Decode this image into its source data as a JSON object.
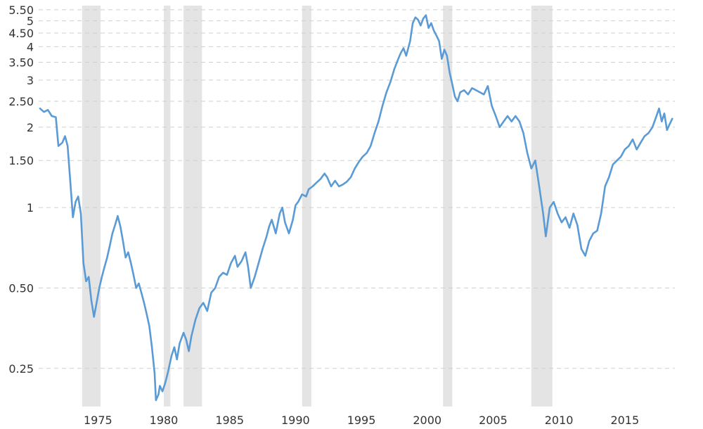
{
  "chart_data": {
    "type": "line",
    "title": "",
    "xlabel": "",
    "ylabel": "",
    "y_scale": "log",
    "xlim": [
      1970.5,
      2018.8
    ],
    "ylim": [
      0.18,
      5.7
    ],
    "grid": true,
    "legend": "none",
    "line_color": "#5b9bd5",
    "recession_color": "#e4e4e4",
    "x_ticks": [
      {
        "value": 1975,
        "label": "1975"
      },
      {
        "value": 1980,
        "label": "1980"
      },
      {
        "value": 1985,
        "label": "1985"
      },
      {
        "value": 1990,
        "label": "1990"
      },
      {
        "value": 1995,
        "label": "1995"
      },
      {
        "value": 2000,
        "label": "2000"
      },
      {
        "value": 2005,
        "label": "2005"
      },
      {
        "value": 2010,
        "label": "2010"
      },
      {
        "value": 2015,
        "label": "2015"
      }
    ],
    "y_ticks": [
      {
        "value": 0.25,
        "label": "0.25"
      },
      {
        "value": 0.5,
        "label": "0.50"
      },
      {
        "value": 1,
        "label": "1"
      },
      {
        "value": 1.5,
        "label": "1.50"
      },
      {
        "value": 2,
        "label": "2"
      },
      {
        "value": 2.5,
        "label": "2.50"
      },
      {
        "value": 3,
        "label": "3"
      },
      {
        "value": 3.5,
        "label": "3.50"
      },
      {
        "value": 4,
        "label": "4"
      },
      {
        "value": 4.5,
        "label": "4.50"
      },
      {
        "value": 5,
        "label": "5"
      },
      {
        "value": 5.5,
        "label": "5.50"
      }
    ],
    "recessions": [
      [
        1973.8,
        1975.2
      ],
      [
        1980.0,
        1980.5
      ],
      [
        1981.5,
        1982.9
      ],
      [
        1990.5,
        1991.2
      ],
      [
        2001.2,
        2001.9
      ],
      [
        2007.9,
        2009.5
      ]
    ],
    "series": [
      {
        "points": [
          [
            1970.6,
            2.35
          ],
          [
            1970.9,
            2.28
          ],
          [
            1971.2,
            2.32
          ],
          [
            1971.5,
            2.2
          ],
          [
            1971.8,
            2.18
          ],
          [
            1972.0,
            1.7
          ],
          [
            1972.3,
            1.75
          ],
          [
            1972.5,
            1.85
          ],
          [
            1972.7,
            1.7
          ],
          [
            1972.9,
            1.25
          ],
          [
            1973.1,
            0.92
          ],
          [
            1973.3,
            1.05
          ],
          [
            1973.5,
            1.1
          ],
          [
            1973.7,
            0.95
          ],
          [
            1973.9,
            0.62
          ],
          [
            1974.1,
            0.53
          ],
          [
            1974.3,
            0.55
          ],
          [
            1974.5,
            0.45
          ],
          [
            1974.7,
            0.39
          ],
          [
            1974.9,
            0.44
          ],
          [
            1975.1,
            0.5
          ],
          [
            1975.3,
            0.55
          ],
          [
            1975.5,
            0.6
          ],
          [
            1975.7,
            0.65
          ],
          [
            1975.9,
            0.72
          ],
          [
            1976.1,
            0.8
          ],
          [
            1976.3,
            0.86
          ],
          [
            1976.5,
            0.93
          ],
          [
            1976.7,
            0.85
          ],
          [
            1976.9,
            0.75
          ],
          [
            1977.1,
            0.65
          ],
          [
            1977.3,
            0.68
          ],
          [
            1977.5,
            0.62
          ],
          [
            1977.7,
            0.56
          ],
          [
            1977.9,
            0.5
          ],
          [
            1978.1,
            0.52
          ],
          [
            1978.3,
            0.48
          ],
          [
            1978.5,
            0.44
          ],
          [
            1978.7,
            0.4
          ],
          [
            1978.9,
            0.36
          ],
          [
            1979.1,
            0.3
          ],
          [
            1979.3,
            0.24
          ],
          [
            1979.4,
            0.19
          ],
          [
            1979.6,
            0.2
          ],
          [
            1979.7,
            0.215
          ],
          [
            1979.9,
            0.205
          ],
          [
            1980.1,
            0.22
          ],
          [
            1980.3,
            0.24
          ],
          [
            1980.6,
            0.28
          ],
          [
            1980.8,
            0.3
          ],
          [
            1981.0,
            0.27
          ],
          [
            1981.2,
            0.31
          ],
          [
            1981.5,
            0.34
          ],
          [
            1981.7,
            0.32
          ],
          [
            1981.9,
            0.29
          ],
          [
            1982.1,
            0.33
          ],
          [
            1982.4,
            0.38
          ],
          [
            1982.7,
            0.42
          ],
          [
            1983.0,
            0.44
          ],
          [
            1983.3,
            0.41
          ],
          [
            1983.6,
            0.48
          ],
          [
            1983.9,
            0.5
          ],
          [
            1984.2,
            0.55
          ],
          [
            1984.5,
            0.57
          ],
          [
            1984.8,
            0.56
          ],
          [
            1985.1,
            0.62
          ],
          [
            1985.4,
            0.66
          ],
          [
            1985.6,
            0.6
          ],
          [
            1985.9,
            0.63
          ],
          [
            1986.2,
            0.68
          ],
          [
            1986.4,
            0.6
          ],
          [
            1986.6,
            0.5
          ],
          [
            1986.9,
            0.55
          ],
          [
            1987.2,
            0.62
          ],
          [
            1987.5,
            0.7
          ],
          [
            1987.8,
            0.78
          ],
          [
            1988.0,
            0.85
          ],
          [
            1988.2,
            0.9
          ],
          [
            1988.5,
            0.8
          ],
          [
            1988.8,
            0.95
          ],
          [
            1989.0,
            1.0
          ],
          [
            1989.2,
            0.88
          ],
          [
            1989.5,
            0.8
          ],
          [
            1989.8,
            0.9
          ],
          [
            1990.0,
            1.02
          ],
          [
            1990.2,
            1.05
          ],
          [
            1990.5,
            1.12
          ],
          [
            1990.8,
            1.1
          ],
          [
            1991.0,
            1.17
          ],
          [
            1991.3,
            1.2
          ],
          [
            1991.6,
            1.24
          ],
          [
            1991.9,
            1.28
          ],
          [
            1992.2,
            1.34
          ],
          [
            1992.4,
            1.3
          ],
          [
            1992.7,
            1.2
          ],
          [
            1993.0,
            1.26
          ],
          [
            1993.3,
            1.2
          ],
          [
            1993.6,
            1.22
          ],
          [
            1993.9,
            1.25
          ],
          [
            1994.2,
            1.3
          ],
          [
            1994.5,
            1.4
          ],
          [
            1994.8,
            1.48
          ],
          [
            1995.1,
            1.55
          ],
          [
            1995.4,
            1.6
          ],
          [
            1995.7,
            1.7
          ],
          [
            1996.0,
            1.9
          ],
          [
            1996.3,
            2.1
          ],
          [
            1996.6,
            2.4
          ],
          [
            1996.9,
            2.7
          ],
          [
            1997.2,
            2.95
          ],
          [
            1997.5,
            3.3
          ],
          [
            1997.8,
            3.6
          ],
          [
            1998.0,
            3.8
          ],
          [
            1998.2,
            3.95
          ],
          [
            1998.4,
            3.7
          ],
          [
            1998.7,
            4.2
          ],
          [
            1998.9,
            4.9
          ],
          [
            1999.1,
            5.15
          ],
          [
            1999.3,
            5.05
          ],
          [
            1999.5,
            4.8
          ],
          [
            1999.7,
            5.1
          ],
          [
            1999.9,
            5.25
          ],
          [
            2000.1,
            4.7
          ],
          [
            2000.3,
            4.9
          ],
          [
            2000.5,
            4.6
          ],
          [
            2000.7,
            4.4
          ],
          [
            2000.9,
            4.2
          ],
          [
            2001.1,
            3.6
          ],
          [
            2001.3,
            3.9
          ],
          [
            2001.5,
            3.7
          ],
          [
            2001.7,
            3.2
          ],
          [
            2001.9,
            2.9
          ],
          [
            2002.1,
            2.6
          ],
          [
            2002.3,
            2.5
          ],
          [
            2002.5,
            2.7
          ],
          [
            2002.8,
            2.75
          ],
          [
            2003.1,
            2.65
          ],
          [
            2003.4,
            2.8
          ],
          [
            2003.7,
            2.75
          ],
          [
            2004.0,
            2.7
          ],
          [
            2004.3,
            2.65
          ],
          [
            2004.6,
            2.85
          ],
          [
            2004.9,
            2.4
          ],
          [
            2005.2,
            2.2
          ],
          [
            2005.5,
            2.0
          ],
          [
            2005.8,
            2.1
          ],
          [
            2006.1,
            2.2
          ],
          [
            2006.4,
            2.1
          ],
          [
            2006.7,
            2.2
          ],
          [
            2007.0,
            2.1
          ],
          [
            2007.3,
            1.9
          ],
          [
            2007.6,
            1.6
          ],
          [
            2007.9,
            1.4
          ],
          [
            2008.2,
            1.5
          ],
          [
            2008.5,
            1.2
          ],
          [
            2008.8,
            0.95
          ],
          [
            2009.0,
            0.78
          ],
          [
            2009.3,
            1.0
          ],
          [
            2009.6,
            1.05
          ],
          [
            2009.9,
            0.95
          ],
          [
            2010.2,
            0.88
          ],
          [
            2010.5,
            0.92
          ],
          [
            2010.8,
            0.84
          ],
          [
            2011.1,
            0.95
          ],
          [
            2011.4,
            0.86
          ],
          [
            2011.7,
            0.7
          ],
          [
            2012.0,
            0.66
          ],
          [
            2012.3,
            0.75
          ],
          [
            2012.6,
            0.8
          ],
          [
            2012.9,
            0.82
          ],
          [
            2013.2,
            0.95
          ],
          [
            2013.5,
            1.2
          ],
          [
            2013.8,
            1.3
          ],
          [
            2014.1,
            1.45
          ],
          [
            2014.4,
            1.5
          ],
          [
            2014.7,
            1.55
          ],
          [
            2015.0,
            1.65
          ],
          [
            2015.3,
            1.7
          ],
          [
            2015.6,
            1.8
          ],
          [
            2015.9,
            1.65
          ],
          [
            2016.2,
            1.75
          ],
          [
            2016.5,
            1.85
          ],
          [
            2016.8,
            1.9
          ],
          [
            2017.1,
            2.0
          ],
          [
            2017.4,
            2.2
          ],
          [
            2017.6,
            2.35
          ],
          [
            2017.8,
            2.1
          ],
          [
            2018.0,
            2.25
          ],
          [
            2018.2,
            1.95
          ],
          [
            2018.4,
            2.05
          ],
          [
            2018.6,
            2.15
          ]
        ]
      }
    ]
  }
}
